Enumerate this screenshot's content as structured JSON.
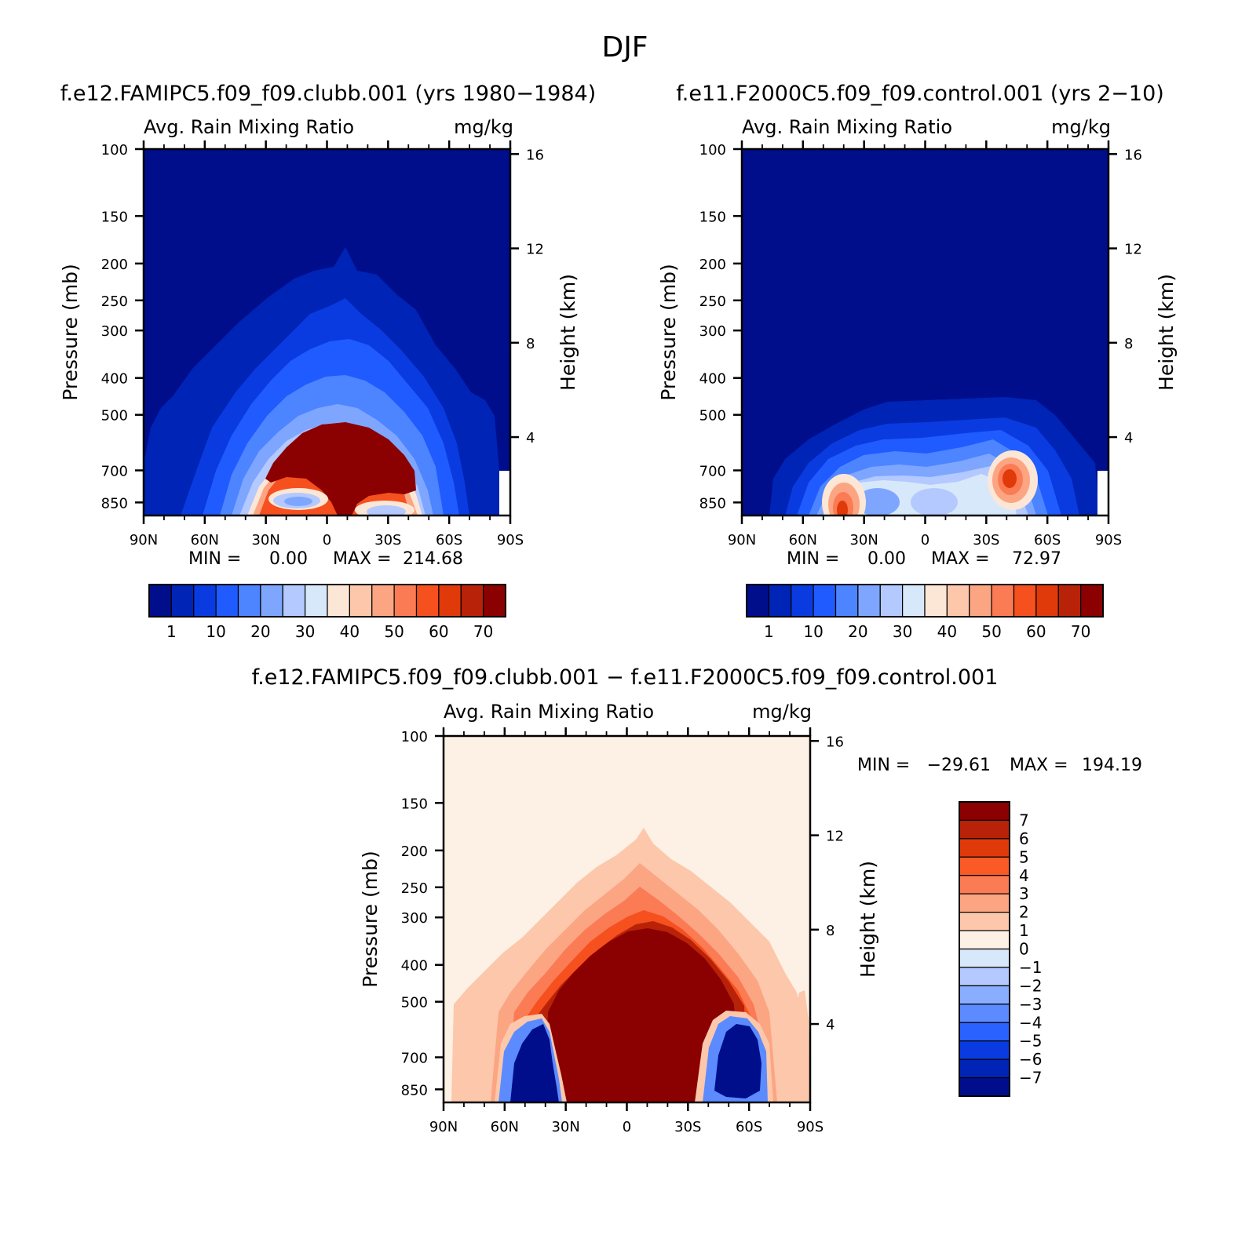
{
  "figure": {
    "title": "DJF"
  },
  "chart_data": [
    {
      "type": "heatmap",
      "id": "panel1",
      "title": "f.e12.FAMIPC5.f09_f09.clubb.001 (yrs 1980−1984)",
      "subtitle_left": "Avg. Rain Mixing Ratio",
      "subtitle_right": "mg/kg",
      "ylabel": "Pressure (mb)",
      "ylabel_right": "Height (km)",
      "x_ticks": [
        "90N",
        "60N",
        "30N",
        "0",
        "30S",
        "60S",
        "90S"
      ],
      "x_values": [
        90,
        60,
        30,
        0,
        -30,
        -60,
        -90
      ],
      "y_ticks": [
        "100",
        "150",
        "200",
        "250",
        "300",
        "400",
        "500",
        "700",
        "850"
      ],
      "y_values": [
        100,
        150,
        200,
        250,
        300,
        400,
        500,
        700,
        850
      ],
      "y_right_ticks": [
        "16",
        "12",
        "8",
        "4"
      ],
      "y_right_values": [
        16,
        12,
        8,
        4
      ],
      "ylim": [
        100,
        920
      ],
      "ylog": true,
      "stats": {
        "min_label": "MIN =",
        "min": "0.00",
        "max_label": "MAX =",
        "max": "214.68"
      },
      "colorbar": {
        "orientation": "horizontal",
        "colors": [
          "#000e8c",
          "#0024b5",
          "#0a3be0",
          "#1f5bff",
          "#4d84ff",
          "#7ea6ff",
          "#b3c9ff",
          "#d8e8fb",
          "#fce6d6",
          "#fcc7aa",
          "#fca583",
          "#fb7b54",
          "#f5501e",
          "#e03a0a",
          "#b82208",
          "#8b0000"
        ],
        "labels": [
          "1",
          "10",
          "20",
          "30",
          "40",
          "50",
          "60",
          "70"
        ]
      }
    },
    {
      "type": "heatmap",
      "id": "panel2",
      "title": "f.e11.F2000C5.f09_f09.control.001 (yrs 2−10)",
      "subtitle_left": "Avg. Rain Mixing Ratio",
      "subtitle_right": "mg/kg",
      "ylabel": "Pressure (mb)",
      "ylabel_right": "Height (km)",
      "x_ticks": [
        "90N",
        "60N",
        "30N",
        "0",
        "30S",
        "60S",
        "90S"
      ],
      "x_values": [
        90,
        60,
        30,
        0,
        -30,
        -60,
        -90
      ],
      "y_ticks": [
        "100",
        "150",
        "200",
        "250",
        "300",
        "400",
        "500",
        "700",
        "850"
      ],
      "y_values": [
        100,
        150,
        200,
        250,
        300,
        400,
        500,
        700,
        850
      ],
      "y_right_ticks": [
        "16",
        "12",
        "8",
        "4"
      ],
      "y_right_values": [
        16,
        12,
        8,
        4
      ],
      "ylim": [
        100,
        920
      ],
      "ylog": true,
      "stats": {
        "min_label": "MIN =",
        "min": "0.00",
        "max_label": "MAX =",
        "max": "72.97"
      },
      "colorbar": {
        "orientation": "horizontal",
        "colors": [
          "#000e8c",
          "#0024b5",
          "#0a3be0",
          "#1f5bff",
          "#4d84ff",
          "#7ea6ff",
          "#b3c9ff",
          "#d8e8fb",
          "#fce6d6",
          "#fcc7aa",
          "#fca583",
          "#fb7b54",
          "#f5501e",
          "#e03a0a",
          "#b82208",
          "#8b0000"
        ],
        "labels": [
          "1",
          "10",
          "20",
          "30",
          "40",
          "50",
          "60",
          "70"
        ]
      }
    },
    {
      "type": "heatmap",
      "id": "panel3",
      "title": "f.e12.FAMIPC5.f09_f09.clubb.001 − f.e11.F2000C5.f09_f09.control.001",
      "subtitle_left": "Avg. Rain Mixing Ratio",
      "subtitle_right": "mg/kg",
      "ylabel": "Pressure (mb)",
      "ylabel_right": "Height (km)",
      "x_ticks": [
        "90N",
        "60N",
        "30N",
        "0",
        "30S",
        "60S",
        "90S"
      ],
      "x_values": [
        90,
        60,
        30,
        0,
        -30,
        -60,
        -90
      ],
      "y_ticks": [
        "100",
        "150",
        "200",
        "250",
        "300",
        "400",
        "500",
        "700",
        "850"
      ],
      "y_values": [
        100,
        150,
        200,
        250,
        300,
        400,
        500,
        700,
        850
      ],
      "y_right_ticks": [
        "16",
        "12",
        "8",
        "4"
      ],
      "y_right_values": [
        16,
        12,
        8,
        4
      ],
      "ylim": [
        100,
        920
      ],
      "ylog": true,
      "stats": {
        "min_label": "MIN =",
        "min": "−29.61",
        "max_label": "MAX =",
        "max": "194.19"
      },
      "colorbar": {
        "orientation": "vertical",
        "colors": [
          "#8b0000",
          "#b82208",
          "#e03a0a",
          "#fb5a26",
          "#fb7b54",
          "#fca583",
          "#fcc7aa",
          "#fdf0e4",
          "#d8e8fb",
          "#b3c9ff",
          "#8aaeff",
          "#5b8bff",
          "#2a62ff",
          "#0a3be0",
          "#0024b5",
          "#000e8c"
        ],
        "labels": [
          "7",
          "6",
          "5",
          "4",
          "3",
          "2",
          "1",
          "0",
          "−1",
          "−2",
          "−3",
          "−4",
          "−5",
          "−6",
          "−7"
        ]
      }
    }
  ]
}
